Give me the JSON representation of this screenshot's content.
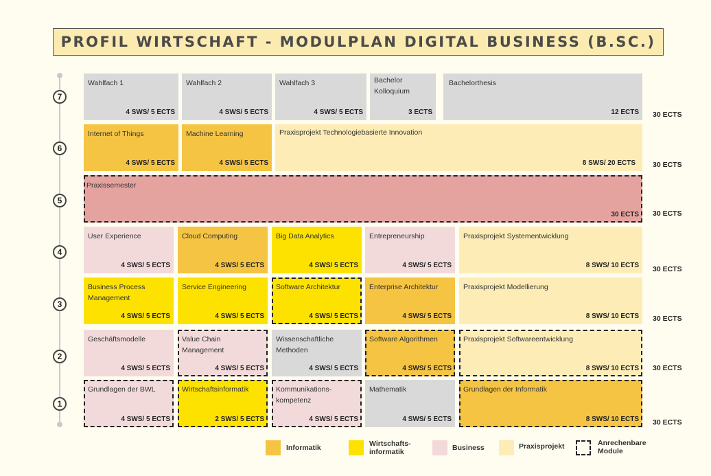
{
  "title": "PROFIL WIRTSCHAFT - MODULPLAN DIGITAL BUSINESS (B.SC.)",
  "semesters": {
    "s1": {
      "label": "1",
      "ects": "30 ECTS"
    },
    "s2": {
      "label": "2",
      "ects": "30 ECTS"
    },
    "s3": {
      "label": "3",
      "ects": "30 ECTS"
    },
    "s4": {
      "label": "4",
      "ects": "30 ECTS"
    },
    "s5": {
      "label": "5",
      "ects": "30 ECTS"
    },
    "s6": {
      "label": "6",
      "ects": "30 ECTS"
    },
    "s7": {
      "label": "7",
      "ects": "30 ECTS"
    }
  },
  "modules": {
    "wahlfach1": {
      "name": "Wahlfach 1",
      "credit": "4 SWS/ 5 ECTS",
      "category": "other"
    },
    "wahlfach2": {
      "name": "Wahlfach 2",
      "credit": "4 SWS/ 5 ECTS",
      "category": "other"
    },
    "wahlfach3": {
      "name": "Wahlfach 3",
      "credit": "4 SWS/ 5 ECTS",
      "category": "other"
    },
    "kolloquium": {
      "name": "Bachelor Kolloquium",
      "credit": "3 ECTS",
      "category": "other"
    },
    "thesis": {
      "name": "Bachelorthesis",
      "credit": "12 ECTS",
      "category": "other"
    },
    "iot": {
      "name": "Internet of Things",
      "credit": "4 SWS/ 5 ECTS",
      "category": "Informatik"
    },
    "ml": {
      "name": "Machine Learning",
      "credit": "4 SWS/ 5 ECTS",
      "category": "Informatik"
    },
    "pp_innovation": {
      "name": "Praxisprojekt Technologiebasierte Innovation",
      "credit": "8 SWS/ 20 ECTS",
      "category": "Praxisprojekt"
    },
    "praxissemester": {
      "name": "Praxissemester",
      "credit": "30 ECTS",
      "category": "other",
      "anrechenbar": true
    },
    "ux": {
      "name": "User Experience",
      "credit": "4 SWS/ 5 ECTS",
      "category": "Business"
    },
    "cloud": {
      "name": "Cloud Computing",
      "credit": "4 SWS/ 5 ECTS",
      "category": "Informatik"
    },
    "bigdata": {
      "name": "Big Data Analytics",
      "credit": "4 SWS/ 5 ECTS",
      "category": "Wirtschaftsinformatik"
    },
    "entre": {
      "name": "Entrepreneurship",
      "credit": "4 SWS/ 5 ECTS",
      "category": "Business"
    },
    "pp_system": {
      "name": "Praxisprojekt Systementwicklung",
      "credit": "8 SWS/ 10 ECTS",
      "category": "Praxisprojekt"
    },
    "bpm": {
      "name": "Business Process Management",
      "credit": "4 SWS/ 5 ECTS",
      "category": "Wirtschaftsinformatik"
    },
    "service": {
      "name": "Service Engineering",
      "credit": "4 SWS/ 5 ECTS",
      "category": "Wirtschaftsinformatik"
    },
    "swarch": {
      "name": "Software Architektur",
      "credit": "4 SWS/ 5 ECTS",
      "category": "Wirtschaftsinformatik",
      "anrechenbar": true
    },
    "entarch": {
      "name": "Enterprise Architektur",
      "credit": "4 SWS/ 5 ECTS",
      "category": "Informatik"
    },
    "pp_model": {
      "name": "Praxisprojekt Modellierung",
      "credit": "8 SWS/ 10 ECTS",
      "category": "Praxisprojekt"
    },
    "geschaeft": {
      "name": "Geschäftsmodelle",
      "credit": "4 SWS/ 5 ECTS",
      "category": "Business"
    },
    "valuechain": {
      "name": "Value Chain Management",
      "credit": "4 SWS/ 5 ECTS",
      "category": "Business",
      "anrechenbar": true
    },
    "wiss": {
      "name": "Wissenschaftliche Methoden",
      "credit": "4 SWS/ 5 ECTS",
      "category": "other"
    },
    "swalgo": {
      "name": "Software Algorithmen",
      "credit": "4 SWS/ 5 ECTS",
      "category": "Informatik",
      "anrechenbar": true
    },
    "pp_software": {
      "name": "Praxisprojekt Softwareentwicklung",
      "credit": "8 SWS/ 10 ECTS",
      "category": "Praxisprojekt",
      "anrechenbar": true
    },
    "bwl": {
      "name": "Grundlagen der BWL",
      "credit": "4 SWS/ 5 ECTS",
      "category": "Business",
      "anrechenbar": true
    },
    "wi": {
      "name": "Wirtschaftsinformatik",
      "credit": "2 SWS/ 5 ECTS",
      "category": "Wirtschaftsinformatik",
      "anrechenbar": true
    },
    "komm": {
      "name": "Kommunikations-kompetenz",
      "credit": "4 SWS/ 5 ECTS",
      "category": "Business",
      "anrechenbar": true
    },
    "mathe": {
      "name": "Mathematik",
      "credit": "4 SWS/ 5 ECTS",
      "category": "other"
    },
    "ginf": {
      "name": "Grundlagen der Informatik",
      "credit": "8 SWS/ 10 ECTS",
      "category": "Informatik",
      "anrechenbar": true
    }
  },
  "legend": {
    "informatik": "Informatik",
    "wi": "Wirtschafts-informatik",
    "business": "Business",
    "praxisprojekt": "Praxisprojekt",
    "anrechenbar": "Anrechenbare Module"
  },
  "colors": {
    "Informatik": "#f5c443",
    "Wirtschaftsinformatik": "#fde200",
    "Business": "#f2dadb",
    "Praxisprojekt": "#fdecb6",
    "other": "#d9d9d9",
    "praxissemester": "#e5a3a0"
  }
}
